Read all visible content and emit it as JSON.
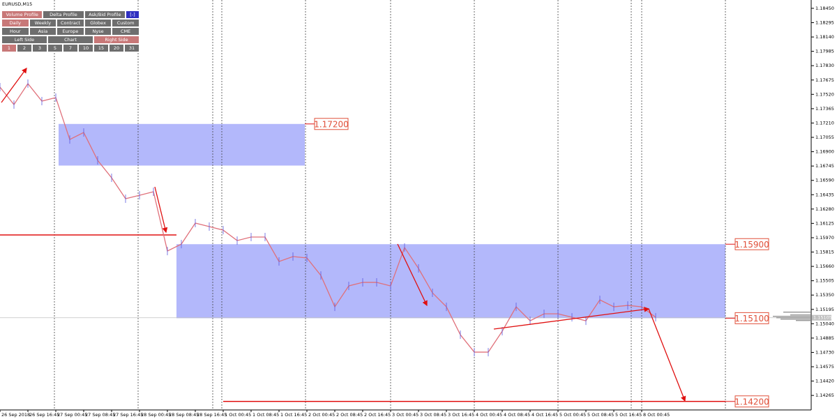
{
  "chart_data": {
    "type": "line",
    "title": "EURUSD,M15",
    "categories": [
      "26 Sep 2018",
      null,
      "26 Sep 16:45",
      null,
      "27 Sep 00:45",
      null,
      "27 Sep 08:45",
      null,
      "27 Sep 16:45",
      null,
      "28 Sep 00:45",
      null,
      "28 Sep 08:45",
      null,
      "28 Sep 16:45",
      null,
      "1 Oct 00:45",
      null,
      "1 Oct 08:45",
      null,
      "1 Oct 16:45",
      null,
      "2 Oct 00:45",
      null,
      "2 Oct 08:45",
      null,
      "2 Oct 16:45",
      null,
      "3 Oct 00:45",
      null,
      "3 Oct 08:45",
      null,
      "3 Oct 16:45",
      null,
      "4 Oct 00:45",
      null,
      "4 Oct 08:45",
      null,
      "4 Oct 16:45",
      null,
      "5 Oct 00:45",
      null,
      "5 Oct 08:45",
      null,
      "5 Oct 16:45",
      null,
      "8 Oct 00:45",
      null
    ],
    "values": [
      1.17598,
      1.17409,
      1.17636,
      1.17447,
      1.17485,
      1.17032,
      1.17108,
      1.16806,
      1.16618,
      1.16392,
      1.16429,
      1.16467,
      1.15826,
      1.15901,
      1.16128,
      1.1609,
      1.16052,
      1.15939,
      1.15977,
      1.15977,
      1.15713,
      1.15766,
      1.15751,
      1.15562,
      1.15223,
      1.15449,
      1.15487,
      1.15487,
      1.15449,
      1.15864,
      1.15638,
      1.15374,
      1.15223,
      1.14921,
      1.14733,
      1.14733,
      1.14959,
      1.15223,
      1.15072,
      1.15147,
      1.15147,
      1.1511,
      1.15072,
      1.15298,
      1.15223,
      1.15238,
      1.15223,
      1.1511
    ],
    "color": "#e0707a",
    "ylim": [
      1.14108,
      1.1854
    ],
    "yticks": [
      {
        "value": 1.1845,
        "label": "1.18450"
      },
      {
        "value": 1.18295,
        "label": "1.18295"
      },
      {
        "value": 1.1814,
        "label": "1.18140"
      },
      {
        "value": 1.17985,
        "label": "1.17985"
      },
      {
        "value": 1.1783,
        "label": "1.17830"
      },
      {
        "value": 1.17675,
        "label": "1.17675"
      },
      {
        "value": 1.1752,
        "label": "1.17520"
      },
      {
        "value": 1.17365,
        "label": "1.17365"
      },
      {
        "value": 1.1721,
        "label": "1.17210"
      },
      {
        "value": 1.17055,
        "label": "1.17055"
      },
      {
        "value": 1.169,
        "label": "1.16900"
      },
      {
        "value": 1.16745,
        "label": "1.16745"
      },
      {
        "value": 1.1659,
        "label": "1.16590"
      },
      {
        "value": 1.16435,
        "label": "1.16435"
      },
      {
        "value": 1.1628,
        "label": "1.16280"
      },
      {
        "value": 1.16125,
        "label": "1.16125"
      },
      {
        "value": 1.1597,
        "label": "1.15970"
      },
      {
        "value": 1.15815,
        "label": "1.15815"
      },
      {
        "value": 1.1566,
        "label": "1.15660"
      },
      {
        "value": 1.15505,
        "label": "1.15505"
      },
      {
        "value": 1.1535,
        "label": "1.15350"
      },
      {
        "value": 1.15195,
        "label": "1.15195"
      },
      {
        "value": 1.1504,
        "label": "1.15040"
      },
      {
        "value": 1.14885,
        "label": "1.14885"
      },
      {
        "value": 1.1473,
        "label": "1.14730"
      },
      {
        "value": 1.14575,
        "label": "1.14575"
      },
      {
        "value": 1.1442,
        "label": "1.14420"
      },
      {
        "value": 1.14265,
        "label": "1.14265"
      }
    ],
    "current_price": {
      "value": 1.15105,
      "label": "1.15105"
    },
    "zones": [
      {
        "from": 1.172,
        "to": 1.1675
      },
      {
        "from": 1.159,
        "to": 1.151
      }
    ],
    "lines": [
      1.16,
      1.142
    ],
    "levels": [
      {
        "value": 1.172,
        "label": "1.17200"
      },
      {
        "value": 1.159,
        "label": "1.15900"
      },
      {
        "value": 1.151,
        "label": "1.15100"
      },
      {
        "value": 1.142,
        "label": "1.14200"
      }
    ]
  },
  "toolbar": {
    "rows": [
      {
        "buttons": [
          "Volume Profile",
          "Delta Profile",
          "Ask/Bid Profile",
          "[-]"
        ],
        "active": 0
      },
      {
        "buttons": [
          "Daily",
          "Weekly",
          "Contract",
          "Globex",
          "Custom"
        ],
        "active": 0
      },
      {
        "buttons": [
          "Hour",
          "Asia",
          "Europe",
          "Nyse",
          "CME"
        ],
        "active": -1
      },
      {
        "buttons": [
          "Left Side",
          "Chart",
          "Right Side"
        ],
        "active": 2
      },
      {
        "buttons": [
          "1",
          "2",
          "3",
          "5",
          "7",
          "10",
          "15",
          "20",
          "31"
        ],
        "active": 0
      }
    ]
  }
}
